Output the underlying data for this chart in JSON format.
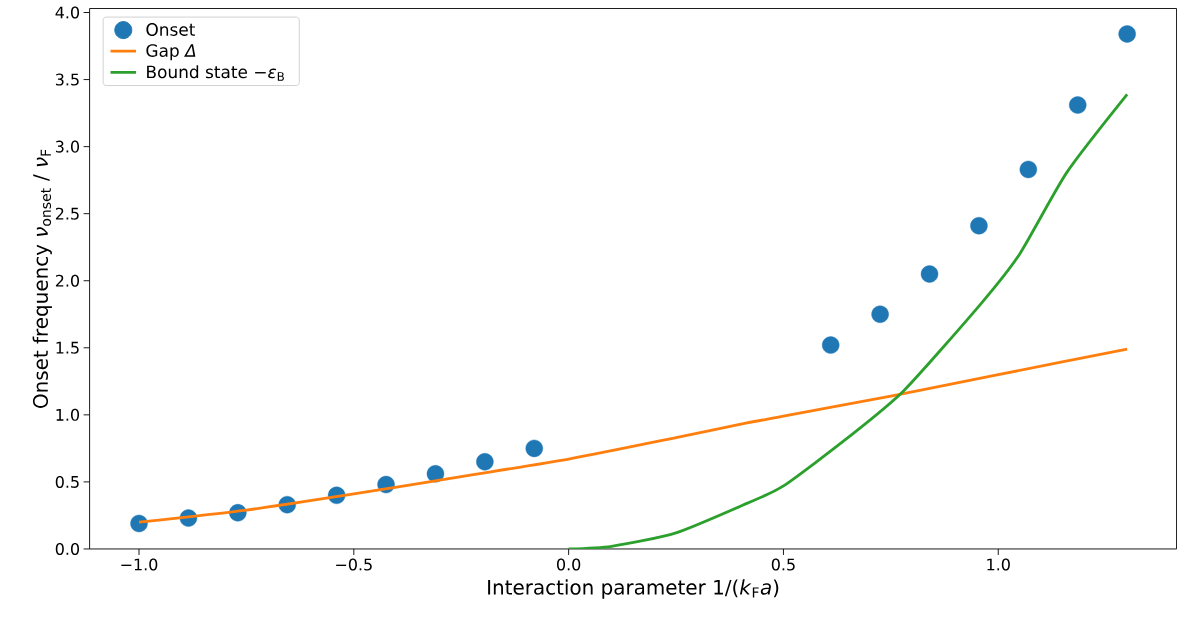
{
  "chart_data": {
    "type": "line",
    "xlabel": "Interaction parameter 1/(*k*$_{F}$*a*)",
    "ylabel": "Onset frequency *ν*$_{onset}$ / *ν*$_{F}$",
    "xlim": [
      -1.115,
      1.415
    ],
    "ylim": [
      0,
      4.03
    ],
    "xticks": [
      {
        "value": -1.0,
        "label": "−1.0"
      },
      {
        "value": -0.5,
        "label": "−0.5"
      },
      {
        "value": 0.0,
        "label": "0.0"
      },
      {
        "value": 0.5,
        "label": "0.5"
      },
      {
        "value": 1.0,
        "label": "1.0"
      }
    ],
    "yticks": [
      {
        "value": 0,
        "label": "0.0"
      },
      {
        "value": 0.5,
        "label": "0.5"
      },
      {
        "value": 1.0,
        "label": "1.0"
      },
      {
        "value": 1.5,
        "label": "1.5"
      },
      {
        "value": 2.0,
        "label": "2.0"
      },
      {
        "value": 2.5,
        "label": "2.5"
      },
      {
        "value": 3.0,
        "label": "3.0"
      },
      {
        "value": 3.5,
        "label": "3.5"
      },
      {
        "value": 4.0,
        "label": "4.0"
      }
    ],
    "legend": "top left",
    "series": [
      {
        "name": "Onset",
        "type": "scatter",
        "marker": "circle",
        "color": "#1f77b4",
        "x": [
          -1.0,
          -0.885,
          -0.77,
          -0.655,
          -0.54,
          -0.425,
          -0.31,
          -0.195,
          -0.08,
          0.61,
          0.725,
          0.84,
          0.955,
          1.07,
          1.185,
          1.3
        ],
        "values": [
          0.19,
          0.23,
          0.27,
          0.33,
          0.4,
          0.48,
          0.56,
          0.65,
          0.75,
          1.52,
          1.75,
          2.05,
          2.41,
          2.83,
          3.31,
          3.84
        ]
      },
      {
        "name": "Gap *Δ*",
        "color": "#ff7f0e",
        "x": [
          -1.0,
          -0.75,
          -0.5,
          -0.25,
          0.0,
          0.25,
          0.415,
          0.5,
          0.75,
          1.0,
          1.3
        ],
        "values": [
          0.2,
          0.29,
          0.41,
          0.54,
          0.67,
          0.83,
          0.94,
          0.99,
          1.14,
          1.3,
          1.49
        ]
      },
      {
        "name": "Bound state −*ε*$_{B}$",
        "color": "#2ca02c",
        "x": [
          0.0,
          0.1,
          0.25,
          0.415,
          0.5,
          0.65,
          0.78,
          0.96,
          1.05,
          1.16,
          1.3
        ],
        "values": [
          0.0,
          0.02,
          0.12,
          0.34,
          0.47,
          0.83,
          1.18,
          1.83,
          2.2,
          2.81,
          3.39
        ]
      }
    ]
  }
}
